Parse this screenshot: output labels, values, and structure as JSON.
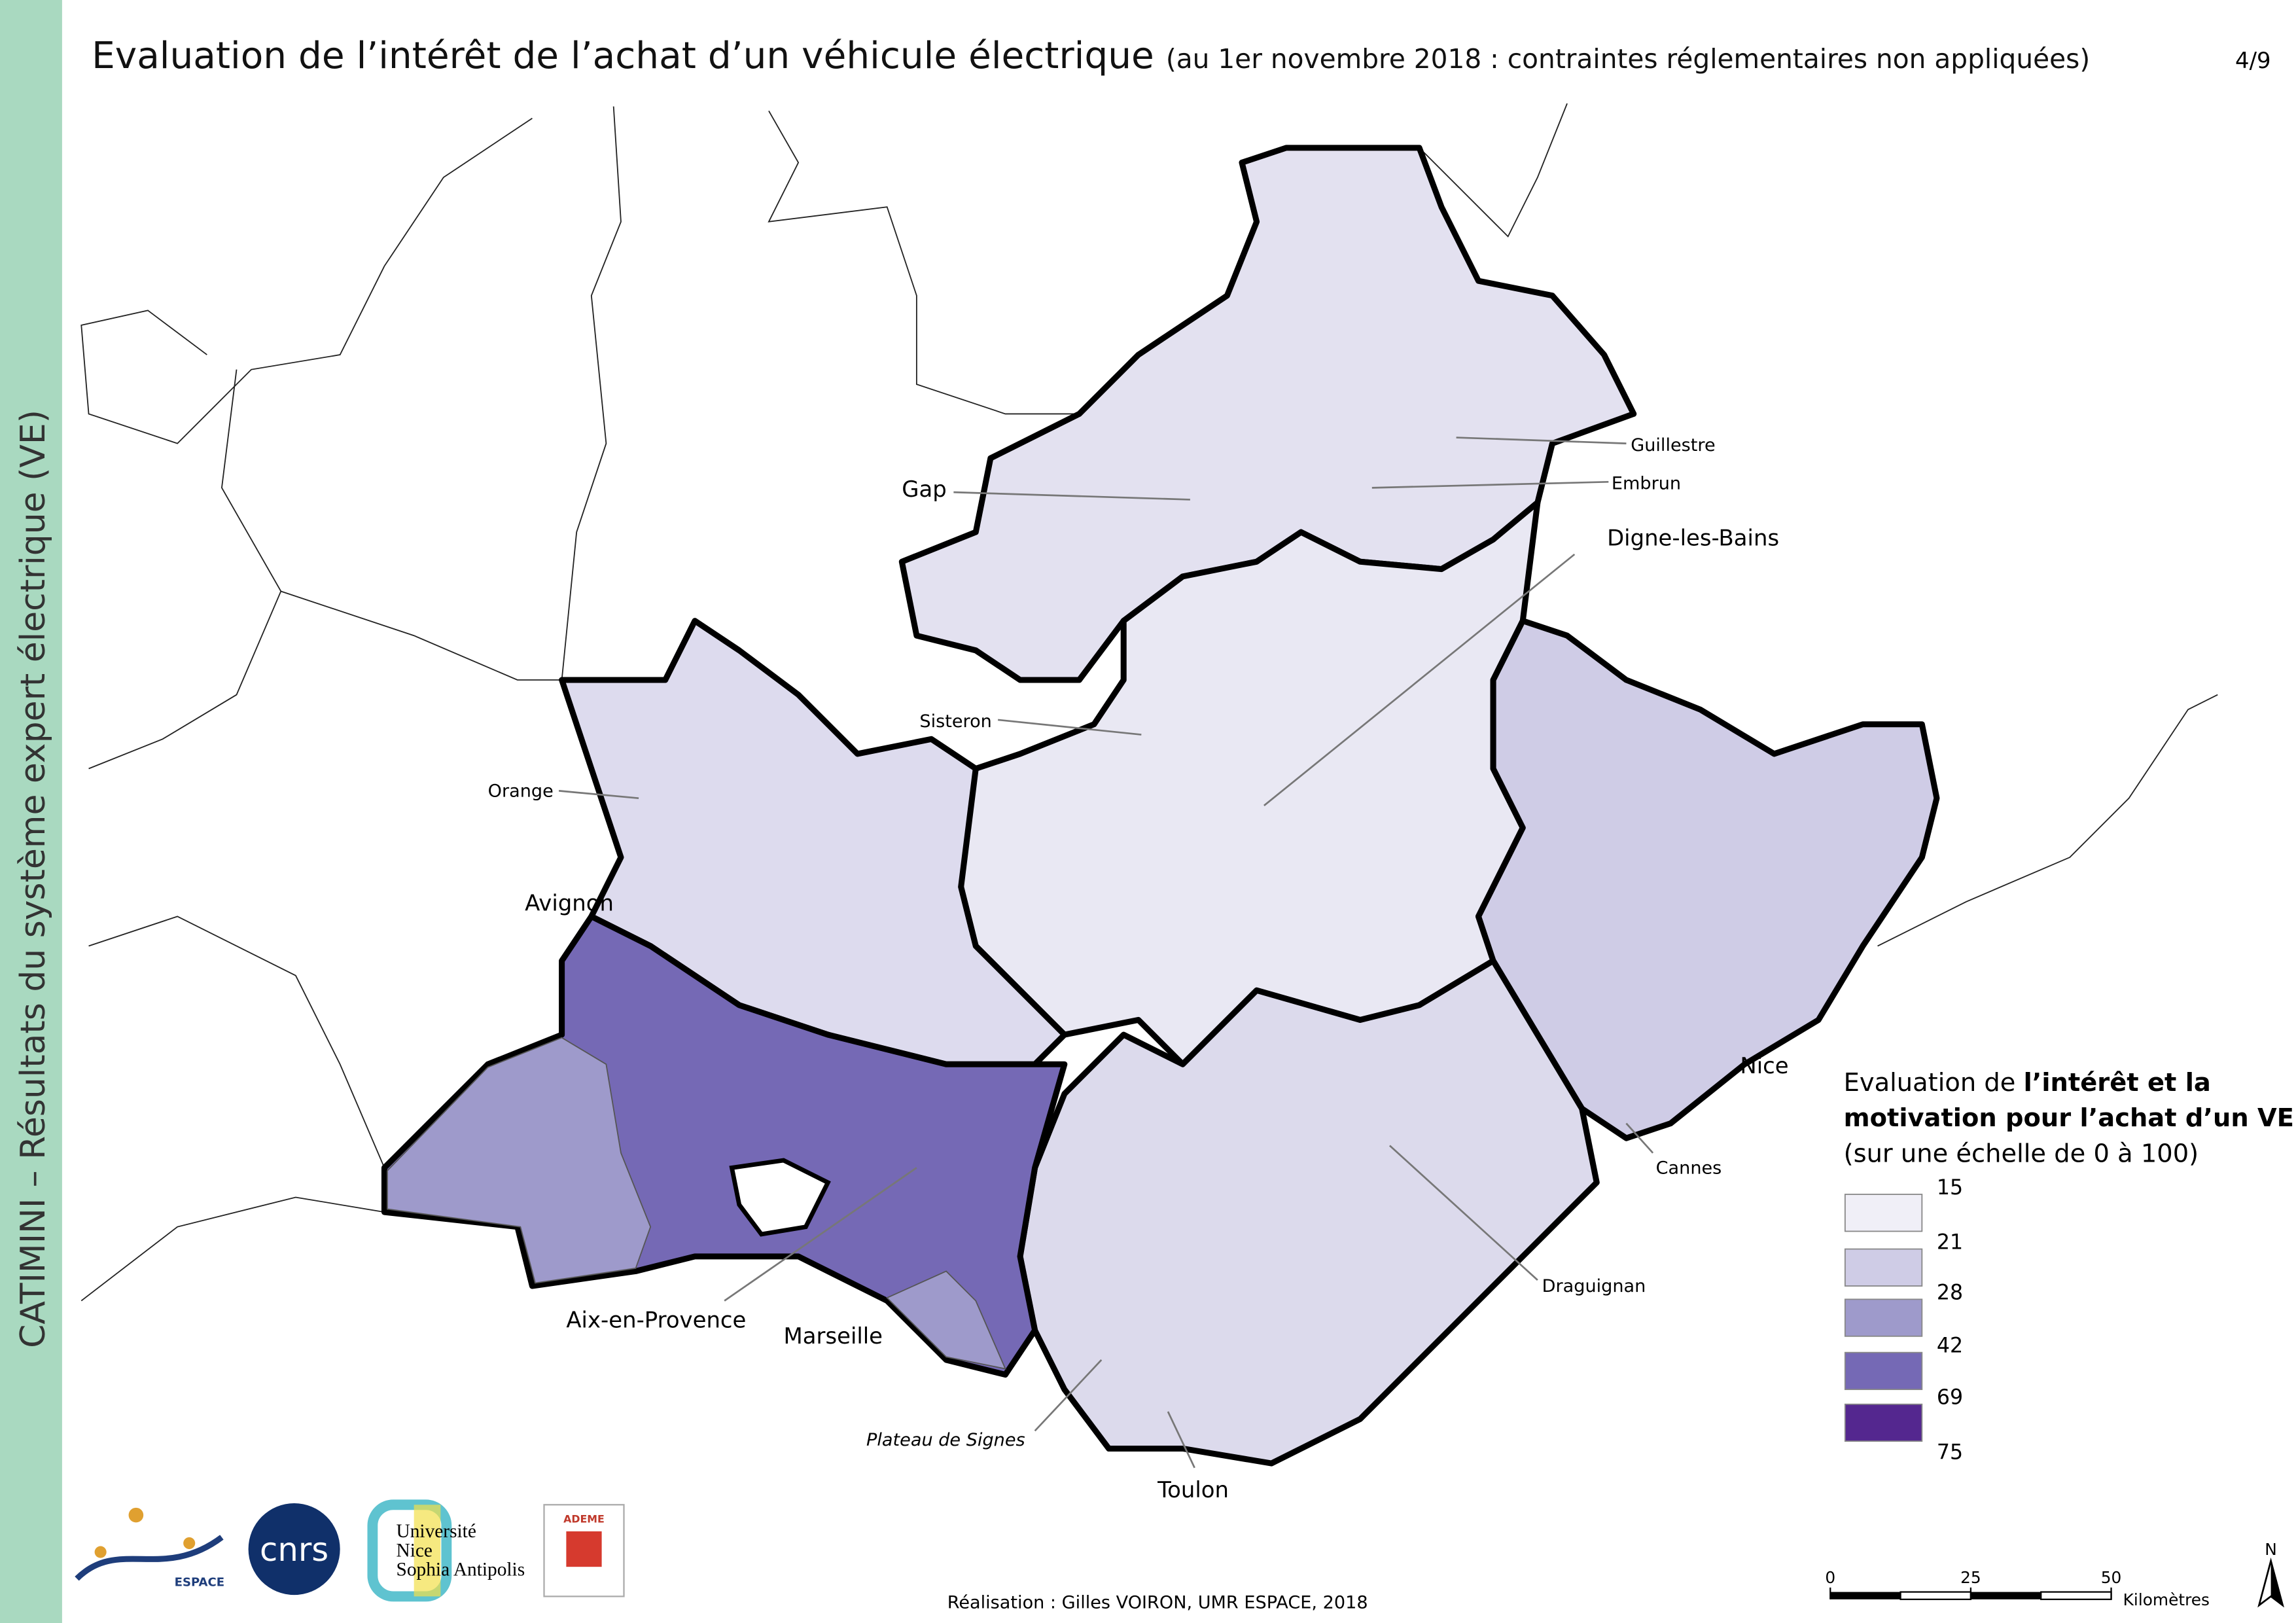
{
  "header": {
    "title": "Evaluation de l’intérêt de l’achat d’un véhicule électrique",
    "subtitle": "(au 1er novembre 2018 : contraintes réglementaires non appliquées)",
    "page": "4/9"
  },
  "sidebar": "CATIMINI – Résultats du système expert électrique (VE)",
  "map": {
    "places": [
      "Gap",
      "Guillestre",
      "Embrun",
      "Digne-les-Bains",
      "Sisteron",
      "Orange",
      "Avignon",
      "Nice",
      "Cannes",
      "Draguignan",
      "Aix-en-Provence",
      "Marseille",
      "Plateau de Signes",
      "Toulon"
    ]
  },
  "legend": {
    "title_parts": [
      "Evaluation de ",
      "l’intérêt et la",
      "motivation pour l’achat d’un VE",
      "(sur une échelle de 0 à 100)"
    ],
    "breaks": [
      15,
      21,
      28,
      42,
      69,
      75
    ],
    "colors": [
      "#f0eff7",
      "#cfcce6",
      "#9e9acb",
      "#7569b5",
      "#54278f"
    ]
  },
  "scale": {
    "ticks": [
      0,
      25,
      50
    ],
    "unit": "Kilomètres"
  },
  "north": "N",
  "credit": "Réalisation : Gilles VOIRON, UMR ESPACE, 2018",
  "logos": {
    "espace": "ESPACE",
    "cnrs": "cnrs",
    "university": [
      "Université",
      "Nice",
      "Sophia Antipolis"
    ],
    "ademe": "ADEME"
  }
}
